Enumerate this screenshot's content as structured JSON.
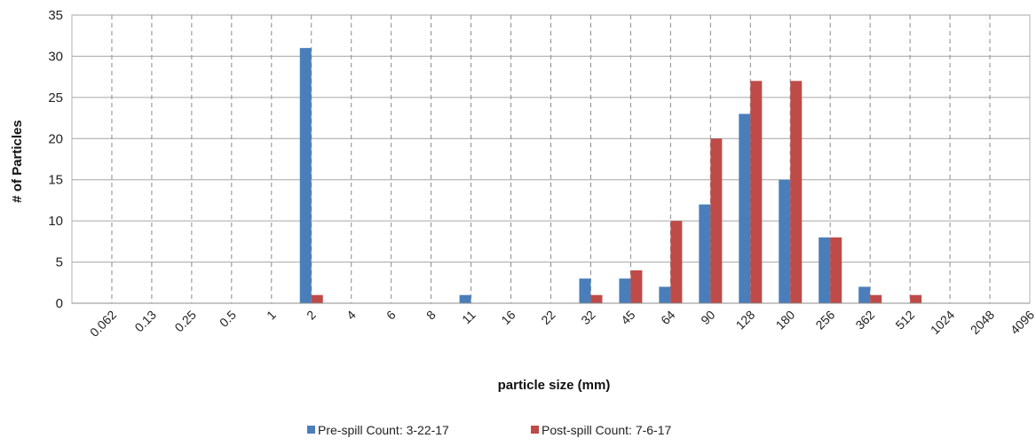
{
  "chart_data": {
    "type": "bar",
    "title": "",
    "xlabel": "particle size (mm)",
    "ylabel": "# of Particles",
    "ylim": [
      0,
      35
    ],
    "yticks": [
      0,
      5,
      10,
      15,
      20,
      25,
      30,
      35
    ],
    "grid": {
      "horizontal": "solid",
      "vertical": "dashed"
    },
    "legend_position": "bottom",
    "categories": [
      "0.062",
      "0.13",
      "0.25",
      "0.5",
      "1",
      "2",
      "4",
      "6",
      "8",
      "11",
      "16",
      "22",
      "32",
      "45",
      "64",
      "90",
      "128",
      "180",
      "256",
      "362",
      "512",
      "1024",
      "2048",
      "4096"
    ],
    "series": [
      {
        "name": "Pre-spill Count: 3-22-17",
        "color": "#4a7ebb",
        "values": [
          0,
          0,
          0,
          0,
          0,
          31,
          0,
          0,
          0,
          1,
          0,
          0,
          3,
          3,
          2,
          12,
          23,
          15,
          8,
          2,
          0,
          0,
          0,
          0
        ]
      },
      {
        "name": "Post-spill Count: 7-6-17",
        "color": "#be4b48",
        "values": [
          0,
          0,
          0,
          0,
          0,
          1,
          0,
          0,
          0,
          0,
          0,
          0,
          1,
          4,
          10,
          20,
          27,
          27,
          8,
          1,
          1,
          0,
          0,
          0
        ]
      }
    ]
  }
}
